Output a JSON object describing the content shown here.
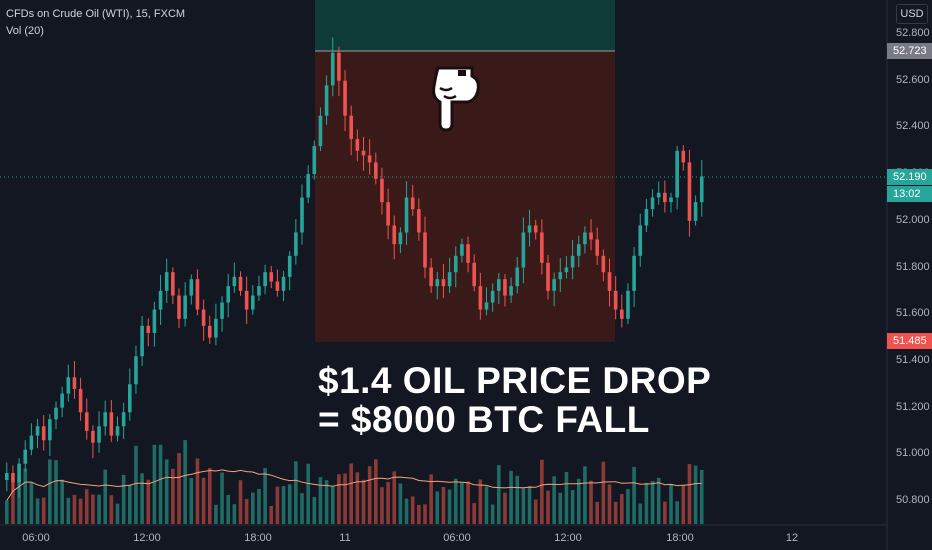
{
  "header": {
    "title": "CFDs on Crude Oil (WTI), 15, FXCM",
    "volume_label": "Vol (20)"
  },
  "currency_button": "USD",
  "overlay": {
    "line1": "$1.4 OIL PRICE DROP",
    "line2": "= $8000 BTC FALL"
  },
  "price_tags": {
    "high": "52.723",
    "current": "52.190",
    "countdown": "13:02",
    "low": "51.485"
  },
  "colors": {
    "up": "#26a69a",
    "down": "#ef5350",
    "short_zone": "#3a1a18",
    "target_zone": "#0e3a38",
    "ma": "#f5a27a"
  },
  "chart_data": {
    "type": "candlestick",
    "symbol": "CFDs on Crude Oil (WTI)",
    "interval": "15",
    "exchange": "FXCM",
    "ylim": [
      50.75,
      52.9
    ],
    "y_ticks": [
      "52.800",
      "52.600",
      "52.400",
      "52.200",
      "52.000",
      "51.800",
      "51.600",
      "51.400",
      "51.200",
      "51.000",
      "50.800"
    ],
    "x_ticks": [
      "06:00",
      "12:00",
      "18:00",
      "11",
      "06:00",
      "12:00",
      "18:00",
      "12"
    ],
    "price_high": 52.723,
    "price_current": 52.19,
    "price_low": 51.485,
    "series": [
      {
        "name": "Vol (20)",
        "closes": [
          50.92,
          50.88,
          50.96,
          51.02,
          51.08,
          51.12,
          51.06,
          51.15,
          51.2,
          51.26,
          51.33,
          51.28,
          51.18,
          51.1,
          51.05,
          51.12,
          51.18,
          51.08,
          51.12,
          51.18,
          51.3,
          51.42,
          51.55,
          51.52,
          51.62,
          51.7,
          51.78,
          51.68,
          51.58,
          51.68,
          51.75,
          51.62,
          51.55,
          51.5,
          51.58,
          51.65,
          51.72,
          51.76,
          51.7,
          51.62,
          51.68,
          51.72,
          51.78,
          51.74,
          51.7,
          51.76,
          51.85,
          51.95,
          52.1,
          52.2,
          52.32,
          52.45,
          52.58,
          52.72,
          52.6,
          52.45,
          52.35,
          52.3,
          52.28,
          52.25,
          52.18,
          52.08,
          51.98,
          51.9,
          51.95,
          52.1,
          52.05,
          51.95,
          51.8,
          51.72,
          51.75,
          51.72,
          51.78,
          51.85,
          51.9,
          51.82,
          51.72,
          51.62,
          51.65,
          51.7,
          51.75,
          51.68,
          51.72,
          51.8,
          51.95,
          51.98,
          51.95,
          51.82,
          51.7,
          51.75,
          51.78,
          51.8,
          51.85,
          51.9,
          51.95,
          51.92,
          51.85,
          51.78,
          51.7,
          51.62,
          51.58,
          51.7,
          51.85,
          51.98,
          52.05,
          52.1,
          52.12,
          52.08,
          52.1,
          52.3,
          52.25,
          52.0,
          52.08,
          52.19
        ]
      }
    ]
  }
}
